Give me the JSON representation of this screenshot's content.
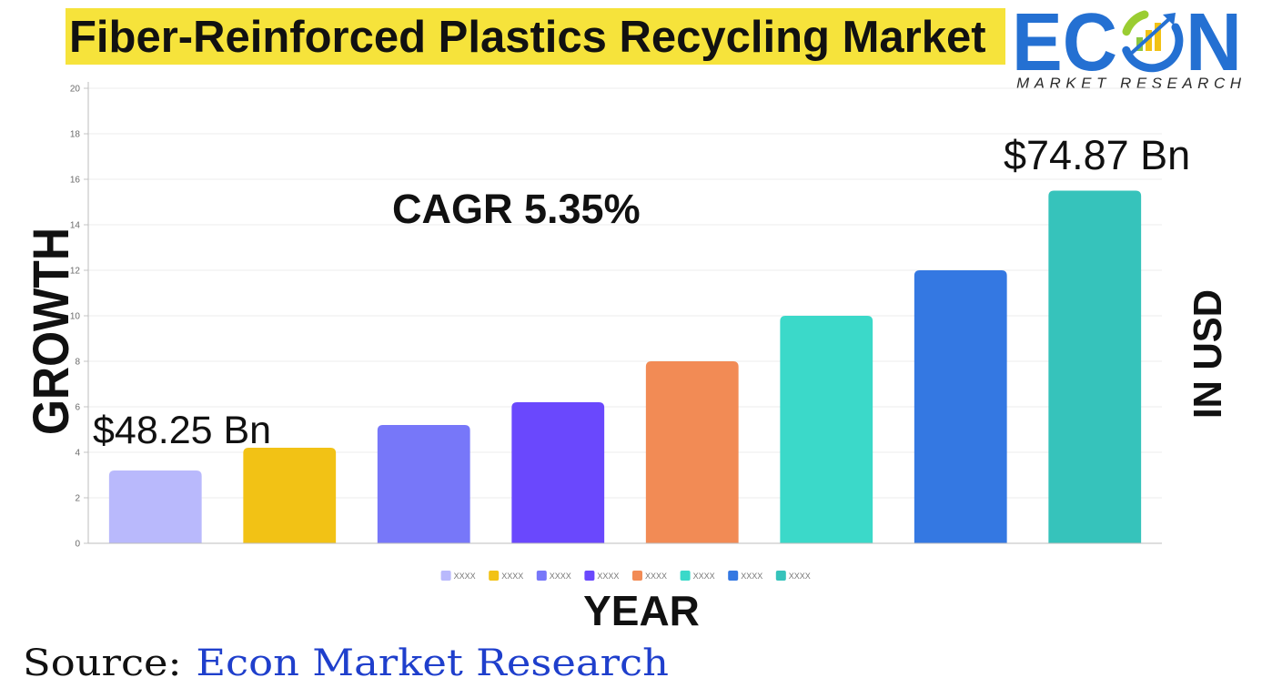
{
  "logo": {
    "name": "ECON",
    "tagline": "MARKET RESEARCH"
  },
  "colors": {
    "title_highlight": "#f6e33b",
    "logo_blue": "#2470d2",
    "source_blue": "#1f3fcc",
    "text": "#111111"
  },
  "chart_data": {
    "type": "bar",
    "title": "Fiber-Reinforced Plastics Recycling Market",
    "categories": [
      "XXXX",
      "XXXX",
      "XXXX",
      "XXXX",
      "XXXX",
      "XXXX",
      "XXXX",
      "XXXX"
    ],
    "values": [
      3.2,
      4.2,
      5.2,
      6.2,
      8,
      10,
      12,
      15.5
    ],
    "colors": [
      "#b9b9fc",
      "#f2c215",
      "#7777f9",
      "#6a48fd",
      "#f28b55",
      "#3bd9c9",
      "#3478e2",
      "#36c3bb"
    ],
    "xlabel": "YEAR",
    "ylabel": "GROWTH",
    "ylabel_right": "IN USD",
    "ylim": [
      0,
      20
    ],
    "yticks": [
      0,
      2,
      4,
      6,
      8,
      10,
      12,
      14,
      16,
      18,
      20
    ],
    "grid": true,
    "legend": "bottom",
    "annotations": {
      "start_value": "$48.25 Bn",
      "end_value": "$74.87 Bn",
      "cagr": "CAGR 5.35%"
    }
  },
  "source": {
    "label": "Source:",
    "name": "Econ Market Research"
  }
}
